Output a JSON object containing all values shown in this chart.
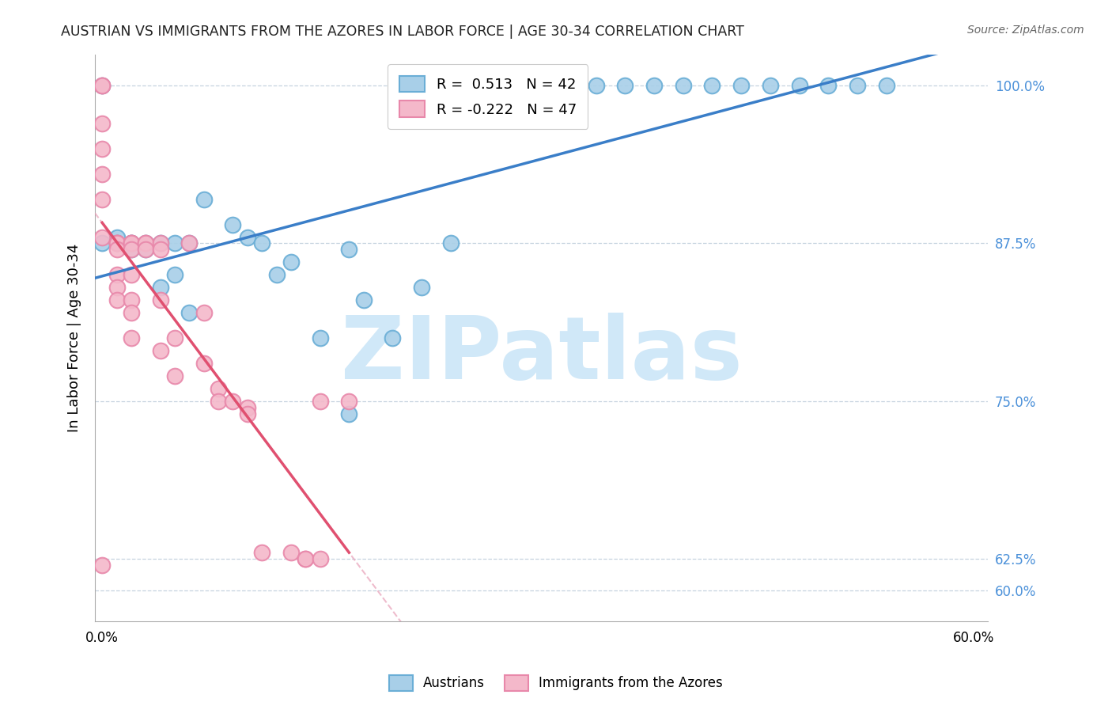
{
  "title": "AUSTRIAN VS IMMIGRANTS FROM THE AZORES IN LABOR FORCE | AGE 30-34 CORRELATION CHART",
  "source": "Source: ZipAtlas.com",
  "ylabel": "In Labor Force | Age 30-34",
  "x_tick_labels": [
    "0.0%",
    "",
    "",
    "",
    "",
    "",
    "60.0%"
  ],
  "x_tick_pos": [
    0.0,
    0.1,
    0.2,
    0.3,
    0.4,
    0.5,
    0.6
  ],
  "y_ticks_right": [
    0.6,
    0.625,
    0.75,
    0.875,
    1.0
  ],
  "y_tick_labels_right": [
    "60.0%",
    "62.5%",
    "75.0%",
    "87.5%",
    "100.0%"
  ],
  "xlim": [
    -0.005,
    0.61
  ],
  "ylim": [
    0.575,
    1.025
  ],
  "blue_color": "#a8cfe8",
  "pink_color": "#f4b8ca",
  "blue_edge": "#6aaed6",
  "pink_edge": "#e888aa",
  "trendline_blue": "#3a7ec8",
  "trendline_pink": "#e05070",
  "trendline_dashed_color": "#e8a0b8",
  "R_blue": 0.513,
  "N_blue": 42,
  "R_pink": -0.222,
  "N_pink": 47,
  "watermark": "ZIPatlas",
  "watermark_color": "#d0e8f8",
  "legend_label_blue": "Austrians",
  "legend_label_pink": "Immigrants from the Azores",
  "blue_x": [
    0.0,
    0.0,
    0.01,
    0.01,
    0.02,
    0.02,
    0.02,
    0.03,
    0.03,
    0.04,
    0.04,
    0.05,
    0.05,
    0.06,
    0.06,
    0.07,
    0.09,
    0.1,
    0.11,
    0.12,
    0.13,
    0.15,
    0.17,
    0.17,
    0.18,
    0.2,
    0.22,
    0.24,
    0.26,
    0.3,
    0.32,
    0.34,
    0.36,
    0.38,
    0.4,
    0.42,
    0.44,
    0.46,
    0.48,
    0.5,
    0.52,
    0.54
  ],
  "blue_y": [
    1.0,
    0.875,
    0.88,
    0.875,
    0.875,
    0.875,
    0.87,
    0.875,
    0.87,
    0.875,
    0.84,
    0.875,
    0.85,
    0.875,
    0.82,
    0.91,
    0.89,
    0.88,
    0.875,
    0.85,
    0.86,
    0.8,
    0.87,
    0.74,
    0.83,
    0.8,
    0.84,
    0.875,
    1.0,
    1.0,
    1.0,
    1.0,
    1.0,
    1.0,
    1.0,
    1.0,
    1.0,
    1.0,
    1.0,
    1.0,
    1.0,
    1.0
  ],
  "pink_x": [
    0.0,
    0.0,
    0.0,
    0.0,
    0.0,
    0.0,
    0.0,
    0.0,
    0.01,
    0.01,
    0.01,
    0.01,
    0.01,
    0.01,
    0.01,
    0.02,
    0.02,
    0.02,
    0.02,
    0.02,
    0.02,
    0.02,
    0.02,
    0.03,
    0.03,
    0.03,
    0.04,
    0.04,
    0.04,
    0.04,
    0.05,
    0.05,
    0.06,
    0.07,
    0.07,
    0.08,
    0.08,
    0.09,
    0.1,
    0.1,
    0.11,
    0.13,
    0.14,
    0.14,
    0.15,
    0.15,
    0.17
  ],
  "pink_y": [
    1.0,
    1.0,
    0.97,
    0.95,
    0.93,
    0.91,
    0.88,
    0.62,
    0.875,
    0.875,
    0.875,
    0.87,
    0.85,
    0.84,
    0.83,
    0.875,
    0.875,
    0.875,
    0.87,
    0.85,
    0.83,
    0.82,
    0.8,
    0.875,
    0.875,
    0.87,
    0.875,
    0.87,
    0.83,
    0.79,
    0.8,
    0.77,
    0.875,
    0.82,
    0.78,
    0.76,
    0.75,
    0.75,
    0.745,
    0.74,
    0.63,
    0.63,
    0.625,
    0.625,
    0.625,
    0.75,
    0.75
  ],
  "pink_trendline_solid_xmax": 0.17
}
